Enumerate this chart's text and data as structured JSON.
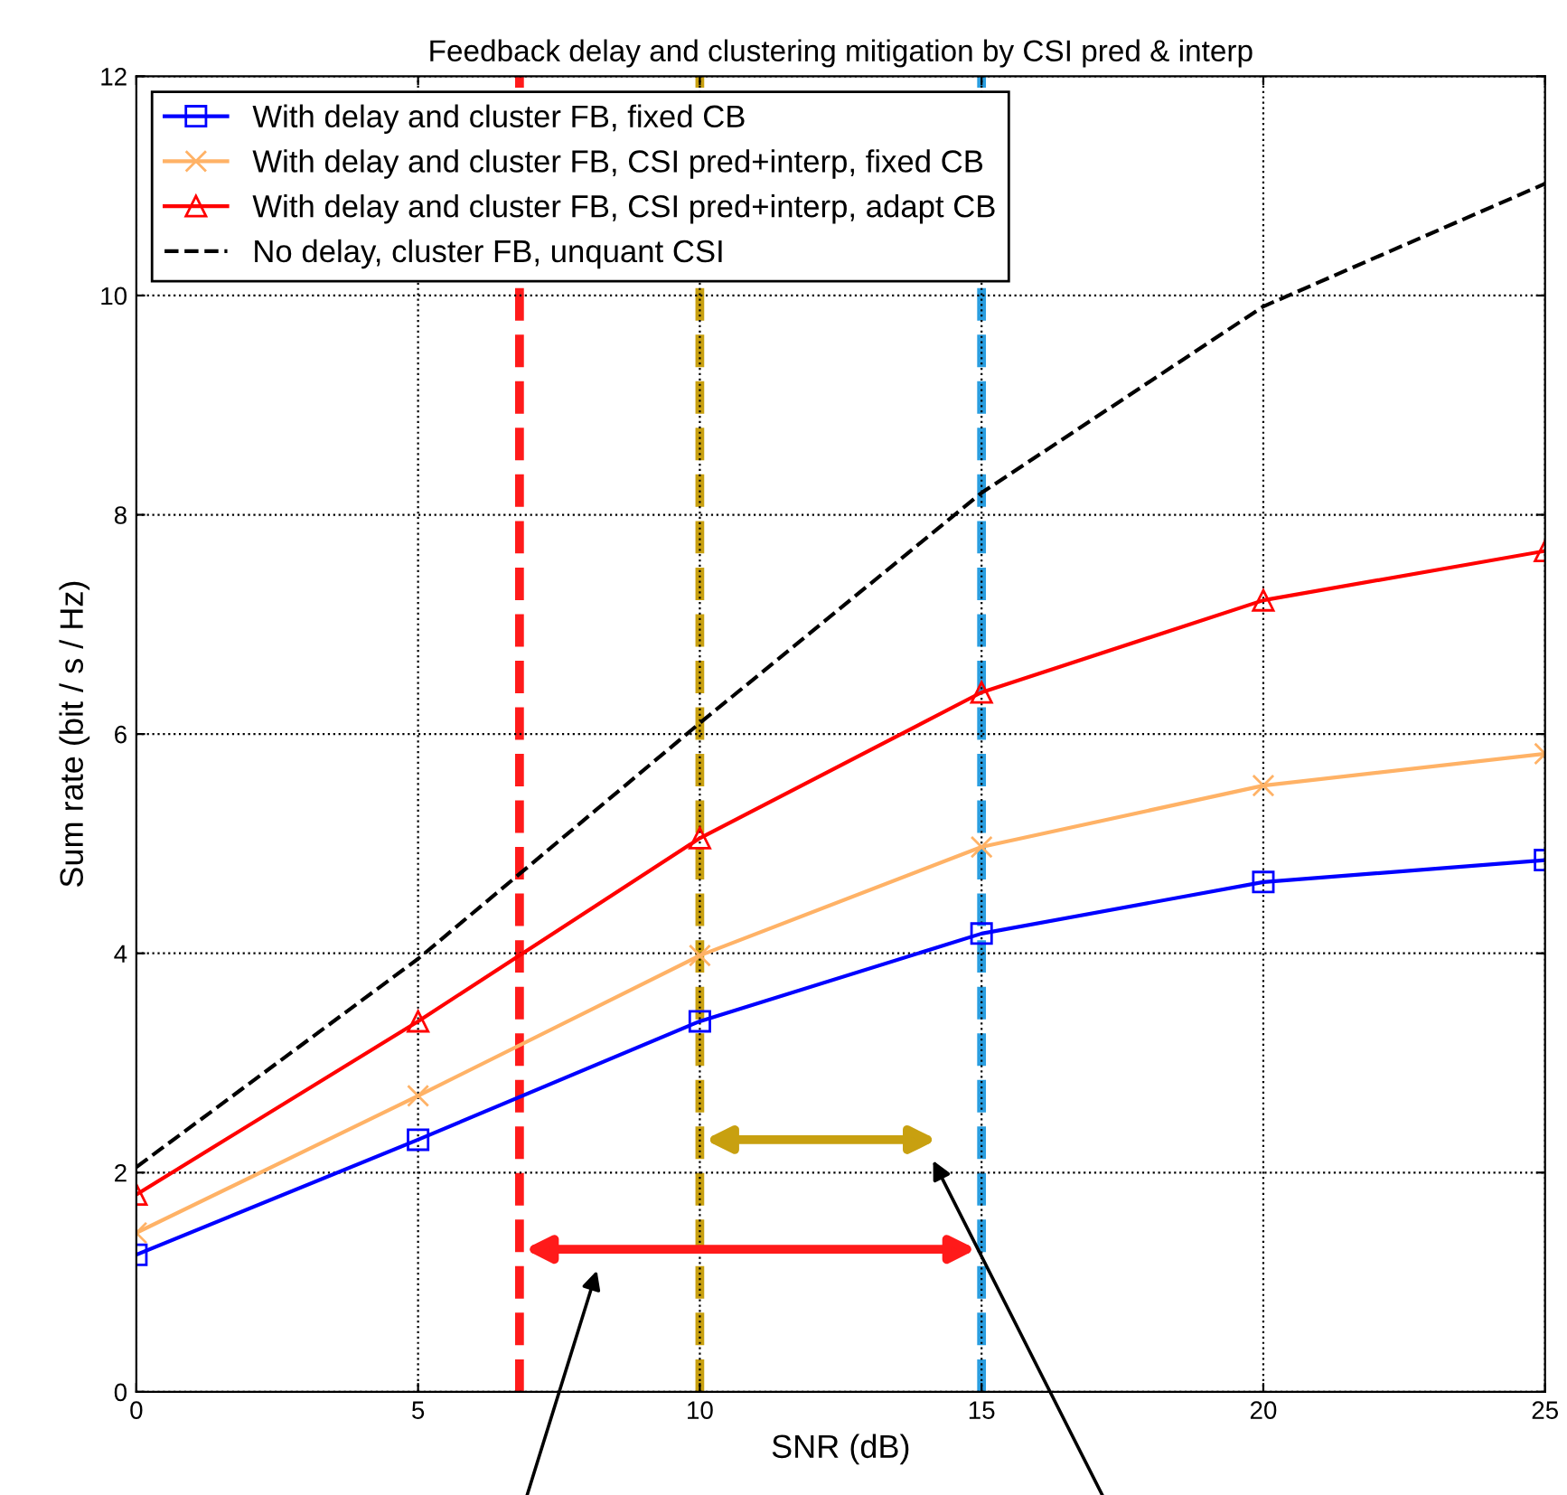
{
  "chart_data": {
    "type": "line",
    "title": "Feedback delay and clustering mitigation by CSI pred & interp",
    "xlabel": "SNR (dB)",
    "ylabel": "Sum rate (bit / s / Hz)",
    "x": [
      0,
      5,
      10,
      15,
      20,
      25
    ],
    "series": [
      {
        "name": "With delay and cluster FB, fixed CB",
        "color": "#0000ff",
        "marker": "square",
        "line_style": "solid",
        "values": [
          1.25,
          2.3,
          3.38,
          4.18,
          4.65,
          4.85
        ]
      },
      {
        "name": "With delay and cluster FB, CSI pred+interp, fixed CB",
        "color": "#ffb266",
        "marker": "cross",
        "line_style": "solid",
        "values": [
          1.45,
          2.7,
          3.98,
          4.97,
          5.53,
          5.82
        ]
      },
      {
        "name": "With delay and cluster FB, CSI pred+interp, adapt CB",
        "color": "#ff0000",
        "marker": "triangle",
        "line_style": "solid",
        "values": [
          1.8,
          3.38,
          5.05,
          6.38,
          7.22,
          7.67
        ]
      },
      {
        "name": "No delay, cluster FB, unquant CSI",
        "color": "#000000",
        "marker": "none",
        "line_style": "dashed",
        "values": [
          2.05,
          3.95,
          6.1,
          8.2,
          9.9,
          11.02
        ]
      }
    ],
    "ref_lines": [
      {
        "axis": "x",
        "value": 6.8,
        "color": "#ff1a1a",
        "line_style": "dashed"
      },
      {
        "axis": "x",
        "value": 10,
        "color": "#c8a010",
        "line_style": "dashed"
      },
      {
        "axis": "x",
        "value": 15,
        "color": "#2a9ee0",
        "line_style": "dashed"
      }
    ],
    "xlim": [
      0,
      25
    ],
    "ylim": [
      0,
      12
    ],
    "xticks": [
      0,
      5,
      10,
      15,
      20,
      25
    ],
    "yticks": [
      0,
      2,
      4,
      6,
      8,
      10,
      12
    ],
    "grid": true,
    "legend": "top left"
  }
}
